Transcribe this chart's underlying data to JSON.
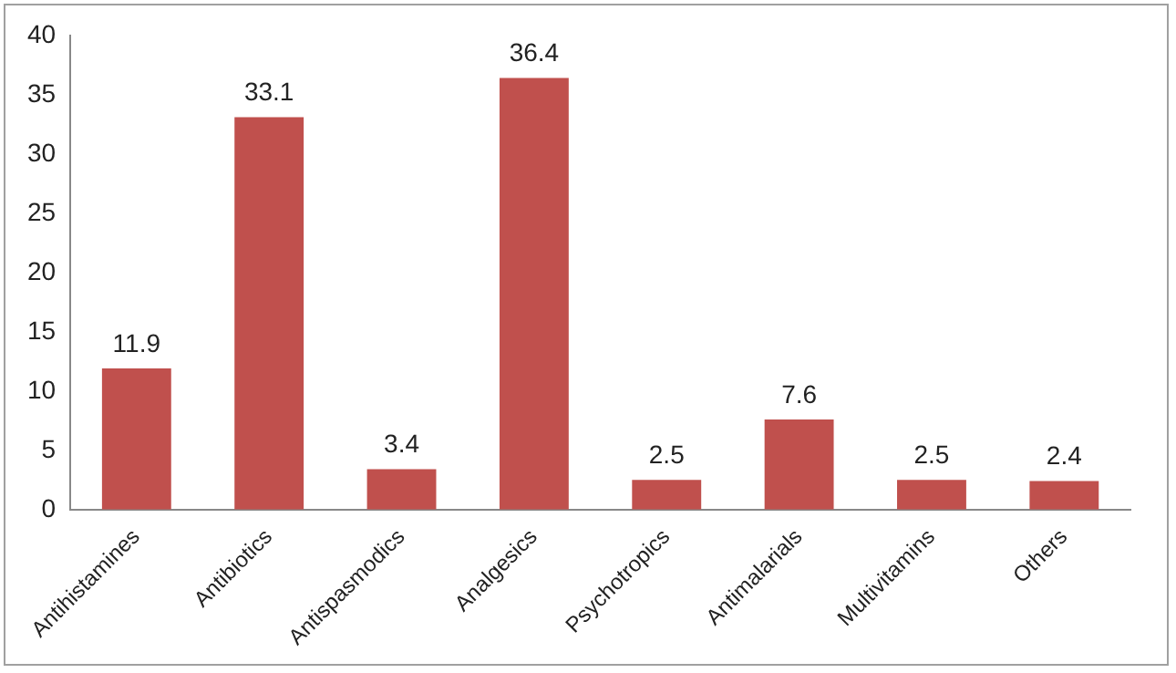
{
  "chart_data": {
    "type": "bar",
    "categories": [
      "Antihistamines",
      "Antibiotics",
      "Antispasmodics",
      "Analgesics",
      "Psychotropics",
      "Antimalarials",
      "Multivitamins",
      "Others"
    ],
    "values": [
      11.9,
      33.1,
      3.4,
      36.4,
      2.5,
      7.6,
      2.5,
      2.4
    ],
    "color": "#c0504d",
    "ylim": [
      0,
      40
    ],
    "yticks": [
      0,
      5,
      10,
      15,
      20,
      25,
      30,
      35,
      40
    ],
    "grid": false,
    "legend": false,
    "data_labels": true
  }
}
